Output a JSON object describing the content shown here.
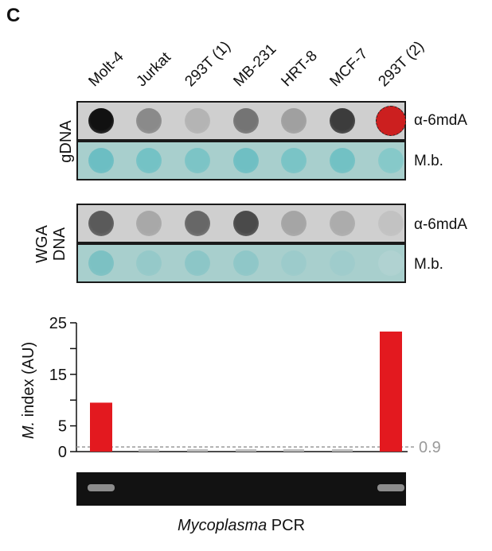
{
  "panel_letter": "C",
  "samples": [
    "Molt-4",
    "Jurkat",
    "293T (1)",
    "MB-231",
    "HRT-8",
    "MCF-7",
    "293T (2)"
  ],
  "blots": {
    "gdna": {
      "label": "gDNA",
      "antibody_label": "α-6mdA",
      "stain_label": "M.b.",
      "antibody_dot_colors": [
        "#111111",
        "#8a8a8a",
        "#b4b4b4",
        "#747474",
        "#a0a0a0",
        "#3c3c3c",
        "#cc1f1f"
      ],
      "stain_dot_colors": [
        "#6cbec3",
        "#74c2c5",
        "#7cc4c6",
        "#6fbfc3",
        "#7ac4c6",
        "#72c1c4",
        "#86c9c9"
      ]
    },
    "wga": {
      "label_line1": "WGA",
      "label_line2": "DNA",
      "antibody_label": "α-6mdA",
      "stain_label": "M.b.",
      "antibody_dot_colors": [
        "#5a5a5a",
        "#a8a8a8",
        "#676767",
        "#4a4a4a",
        "#a5a5a5",
        "#acacac",
        "#c2c2c2"
      ],
      "stain_dot_colors": [
        "#7cc1c3",
        "#95c9c9",
        "#8cc6c7",
        "#8fc7c8",
        "#9ccbcb",
        "#9fcccc",
        "#b0d2d1"
      ]
    }
  },
  "chart_data": {
    "type": "bar",
    "categories": [
      "Molt-4",
      "Jurkat",
      "293T (1)",
      "MB-231",
      "HRT-8",
      "MCF-7",
      "293T (2)"
    ],
    "values": [
      9.5,
      0.25,
      0.25,
      0.25,
      0.25,
      0.25,
      23.3
    ],
    "ylabel_italic": "M.",
    "ylabel_rest": " index (AU)",
    "ylim": [
      0,
      25
    ],
    "yticks": [
      "0",
      "5",
      "15",
      "25"
    ],
    "threshold": 0.9,
    "threshold_label": "0.9",
    "colors": {
      "positive": "#e3191f",
      "negative": "#bdbdbd",
      "threshold": "#9a9a9a"
    }
  },
  "gel": {
    "caption_italic": "Mycoplasma",
    "caption_rest": " PCR",
    "band_present": [
      true,
      false,
      false,
      false,
      false,
      false,
      true
    ]
  }
}
